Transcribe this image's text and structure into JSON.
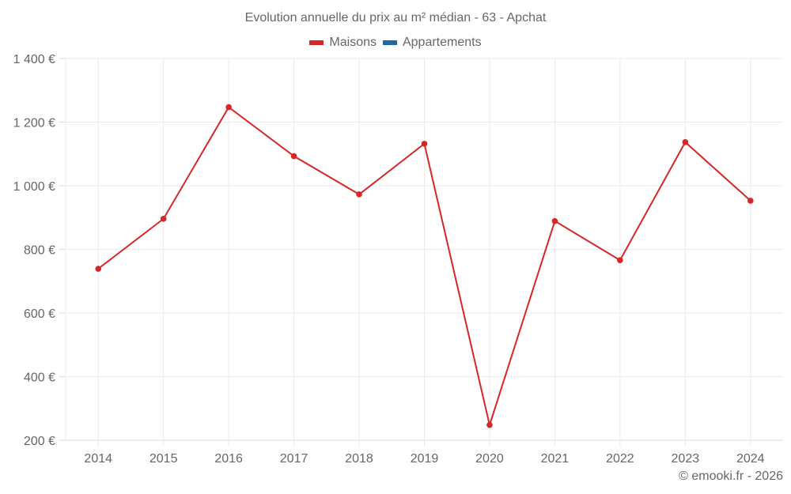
{
  "chart": {
    "title": "Evolution annuelle du prix au m² médian - 63 - Apchat",
    "legend": [
      {
        "label": "Maisons",
        "color": "#d62728"
      },
      {
        "label": "Appartements",
        "color": "#1f6aa5"
      }
    ],
    "footer": "© emooki.fr - 2026"
  },
  "chart_data": {
    "type": "line",
    "title": "Evolution annuelle du prix au m² médian - 63 - Apchat",
    "xlabel": "",
    "ylabel": "",
    "categories": [
      "2014",
      "2015",
      "2016",
      "2017",
      "2018",
      "2019",
      "2020",
      "2021",
      "2022",
      "2023",
      "2024"
    ],
    "series": [
      {
        "name": "Maisons",
        "color": "#d62728",
        "values": [
          739,
          896,
          1247,
          1093,
          973,
          1132,
          248,
          889,
          766,
          1137,
          953
        ]
      },
      {
        "name": "Appartements",
        "color": "#1f6aa5",
        "values": []
      }
    ],
    "yticks": [
      200,
      400,
      600,
      800,
      1000,
      1200,
      1400
    ],
    "ytick_labels": [
      "200 €",
      "400 €",
      "600 €",
      "800 €",
      "1 000 €",
      "1 200 €",
      "1 400 €"
    ],
    "ylim": [
      200,
      1400
    ],
    "grid": true,
    "legend_position": "top"
  }
}
